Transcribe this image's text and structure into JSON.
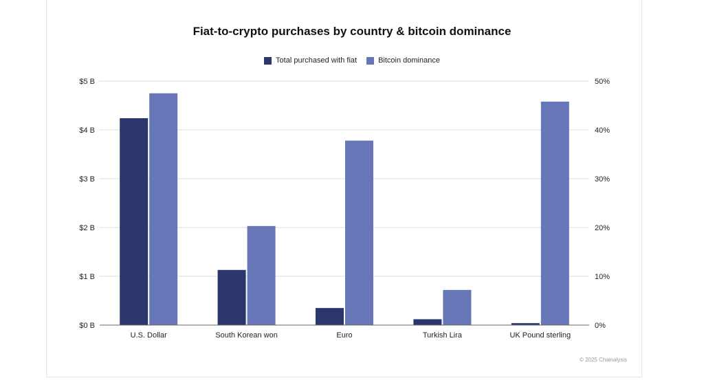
{
  "chart_data": {
    "type": "bar",
    "title": "Fiat-to-crypto purchases by country & bitcoin dominance",
    "categories": [
      "U.S. Dollar",
      "South Korean won",
      "Euro",
      "Turkish Lira",
      "UK Pound sterling"
    ],
    "series": [
      {
        "name": "Total purchased with fiat",
        "axis": "left",
        "color": "#2b366c",
        "values": [
          4.24,
          1.13,
          0.35,
          0.12,
          0.04
        ]
      },
      {
        "name": "Bitcoin dominance",
        "axis": "right",
        "color": "#6676b6",
        "values": [
          47.5,
          20.3,
          37.8,
          7.2,
          45.8
        ]
      }
    ],
    "y_left": {
      "ticks": [
        "$0 B",
        "$1 B",
        "$2 B",
        "$3 B",
        "$4 B",
        "$5 B"
      ],
      "ylim": [
        0,
        5
      ]
    },
    "y_right": {
      "ticks": [
        "0%",
        "10%",
        "20%",
        "30%",
        "40%",
        "50%"
      ],
      "ylim": [
        0,
        50
      ]
    },
    "grid": true,
    "legend_position": "top-center"
  },
  "footer": "© 2025 Chainalysis"
}
